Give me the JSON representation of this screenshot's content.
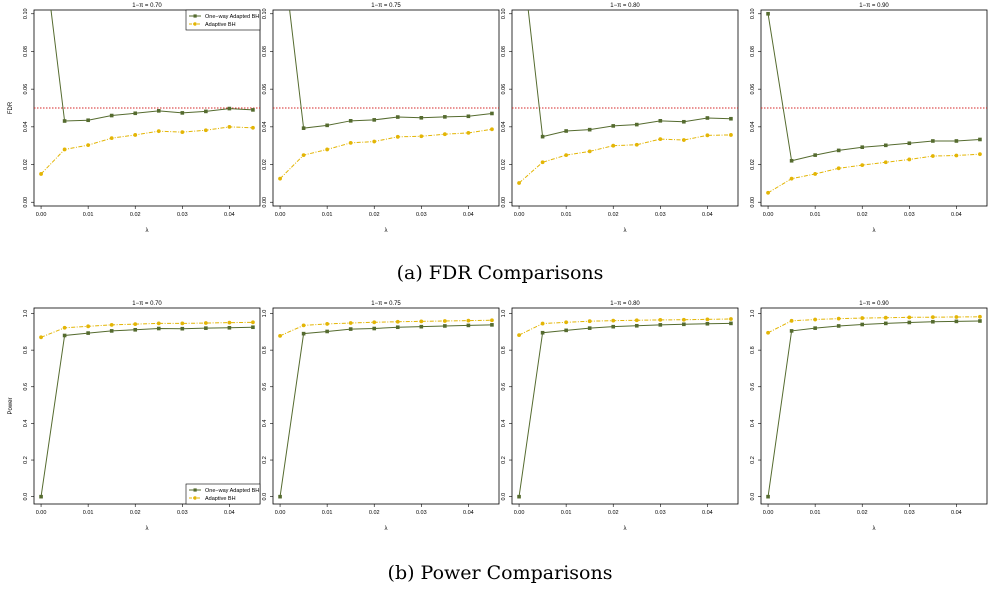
{
  "captions": {
    "row_a": "(a) FDR Comparisons",
    "row_b": "(b) Power Comparisons"
  },
  "colors": {
    "one_way": "#556b2f",
    "adaptive": "#e3b505",
    "reference_line": "#d62728"
  },
  "chart_data": [
    {
      "type": "line",
      "title": "1−π = 0.70",
      "xlabel": "λ",
      "ylabel": "FDR",
      "xlim": [
        -0.0015,
        0.0465
      ],
      "ylim": [
        -0.002,
        0.102
      ],
      "xticks": [
        0.0,
        0.01,
        0.02,
        0.03,
        0.04
      ],
      "xticklabels": [
        "0.00",
        "0.01",
        "0.02",
        "0.03",
        "0.04"
      ],
      "yticks": [
        0.0,
        0.02,
        0.04,
        0.06,
        0.08,
        0.1
      ],
      "yticklabels": [
        "0.00",
        "0.02",
        "0.04",
        "0.06",
        "0.08",
        "0.10"
      ],
      "hline": 0.05,
      "legend": "top-right",
      "x": [
        0.0,
        0.005,
        0.01,
        0.015,
        0.02,
        0.025,
        0.03,
        0.035,
        0.04,
        0.045
      ],
      "series": [
        {
          "name": "One−way Adapted BH",
          "marker": "square",
          "values": [
            0.145,
            0.0431,
            0.0435,
            0.046,
            0.0472,
            0.0485,
            0.0474,
            0.0482,
            0.0497,
            0.049
          ]
        },
        {
          "name": "Adaptive BH",
          "marker": "circle",
          "values": [
            0.015,
            0.028,
            0.0303,
            0.034,
            0.0357,
            0.0377,
            0.0372,
            0.0382,
            0.04,
            0.0395
          ]
        }
      ]
    },
    {
      "type": "line",
      "title": "1−π = 0.75",
      "xlabel": "λ",
      "ylabel": "",
      "xlim": [
        -0.0015,
        0.0465
      ],
      "ylim": [
        -0.002,
        0.102
      ],
      "xticks": [
        0.0,
        0.01,
        0.02,
        0.03,
        0.04
      ],
      "xticklabels": [
        "0.00",
        "0.01",
        "0.02",
        "0.03",
        "0.04"
      ],
      "yticks": [
        0.0,
        0.02,
        0.04,
        0.06,
        0.08,
        0.1
      ],
      "yticklabels": [
        "0.00",
        "0.02",
        "0.04",
        "0.06",
        "0.08",
        "0.10"
      ],
      "hline": 0.05,
      "legend": "none",
      "x": [
        0.0,
        0.005,
        0.01,
        0.015,
        0.02,
        0.025,
        0.03,
        0.035,
        0.04,
        0.045
      ],
      "series": [
        {
          "name": "",
          "marker": "square",
          "values": [
            0.145,
            0.0393,
            0.0408,
            0.0432,
            0.0437,
            0.0452,
            0.0448,
            0.0453,
            0.0456,
            0.0471
          ]
        },
        {
          "name": "",
          "marker": "circle",
          "values": [
            0.0125,
            0.025,
            0.028,
            0.0315,
            0.0322,
            0.0347,
            0.035,
            0.0361,
            0.0368,
            0.0387
          ]
        }
      ]
    },
    {
      "type": "line",
      "title": "1−π = 0.80",
      "xlabel": "λ",
      "ylabel": "",
      "xlim": [
        -0.0015,
        0.0465
      ],
      "ylim": [
        -0.002,
        0.102
      ],
      "xticks": [
        0.0,
        0.01,
        0.02,
        0.03,
        0.04
      ],
      "xticklabels": [
        "0.00",
        "0.01",
        "0.02",
        "0.03",
        "0.04"
      ],
      "yticks": [
        0.0,
        0.02,
        0.04,
        0.06,
        0.08,
        0.1
      ],
      "yticklabels": [
        "0.00",
        "0.02",
        "0.04",
        "0.06",
        "0.08",
        "0.10"
      ],
      "hline": 0.05,
      "legend": "none",
      "x": [
        0.0,
        0.005,
        0.01,
        0.015,
        0.02,
        0.025,
        0.03,
        0.035,
        0.04,
        0.045
      ],
      "series": [
        {
          "name": "",
          "marker": "square",
          "values": [
            0.145,
            0.0348,
            0.0378,
            0.0385,
            0.0405,
            0.0412,
            0.0432,
            0.0427,
            0.0447,
            0.0443
          ]
        },
        {
          "name": "",
          "marker": "circle",
          "values": [
            0.0102,
            0.0212,
            0.025,
            0.027,
            0.03,
            0.0305,
            0.0335,
            0.033,
            0.0355,
            0.0357
          ]
        }
      ]
    },
    {
      "type": "line",
      "title": "1−π = 0.90",
      "xlabel": "λ",
      "ylabel": "",
      "xlim": [
        -0.0015,
        0.0465
      ],
      "ylim": [
        -0.002,
        0.102
      ],
      "xticks": [
        0.0,
        0.01,
        0.02,
        0.03,
        0.04
      ],
      "xticklabels": [
        "0.00",
        "0.01",
        "0.02",
        "0.03",
        "0.04"
      ],
      "yticks": [
        0.0,
        0.02,
        0.04,
        0.06,
        0.08,
        0.1
      ],
      "yticklabels": [
        "0.00",
        "0.02",
        "0.04",
        "0.06",
        "0.08",
        "0.10"
      ],
      "hline": 0.05,
      "legend": "none",
      "x": [
        0.0,
        0.005,
        0.01,
        0.015,
        0.02,
        0.025,
        0.03,
        0.035,
        0.04,
        0.045
      ],
      "series": [
        {
          "name": "",
          "marker": "square",
          "values": [
            0.1,
            0.022,
            0.025,
            0.0275,
            0.0292,
            0.0302,
            0.0313,
            0.0325,
            0.0325,
            0.0333
          ]
        },
        {
          "name": "",
          "marker": "circle",
          "values": [
            0.005,
            0.0125,
            0.015,
            0.018,
            0.0197,
            0.0212,
            0.0227,
            0.0245,
            0.0248,
            0.0255
          ]
        }
      ]
    },
    {
      "type": "line",
      "title": "1−π = 0.70",
      "xlabel": "λ",
      "ylabel": "Power",
      "xlim": [
        -0.0015,
        0.0465
      ],
      "ylim": [
        -0.04,
        1.03
      ],
      "xticks": [
        0.0,
        0.01,
        0.02,
        0.03,
        0.04
      ],
      "xticklabels": [
        "0.00",
        "0.01",
        "0.02",
        "0.03",
        "0.04"
      ],
      "yticks": [
        0.0,
        0.2,
        0.4,
        0.6,
        0.8,
        1.0
      ],
      "yticklabels": [
        "0.0",
        "0.2",
        "0.4",
        "0.6",
        "0.8",
        "1.0"
      ],
      "legend": "bottom-right",
      "x": [
        0.0,
        0.005,
        0.01,
        0.015,
        0.02,
        0.025,
        0.03,
        0.035,
        0.04,
        0.045
      ],
      "series": [
        {
          "name": "One−way Adapted BH",
          "marker": "square",
          "values": [
            0.0,
            0.88,
            0.893,
            0.905,
            0.911,
            0.918,
            0.917,
            0.92,
            0.922,
            0.925
          ]
        },
        {
          "name": "Adaptive BH",
          "marker": "circle",
          "values": [
            0.87,
            0.922,
            0.93,
            0.938,
            0.942,
            0.946,
            0.946,
            0.948,
            0.95,
            0.952
          ]
        }
      ]
    },
    {
      "type": "line",
      "title": "1−π = 0.75",
      "xlabel": "λ",
      "ylabel": "",
      "xlim": [
        -0.0015,
        0.0465
      ],
      "ylim": [
        -0.04,
        1.03
      ],
      "xticks": [
        0.0,
        0.01,
        0.02,
        0.03,
        0.04
      ],
      "xticklabels": [
        "0.00",
        "0.01",
        "0.02",
        "0.03",
        "0.04"
      ],
      "yticks": [
        0.0,
        0.2,
        0.4,
        0.6,
        0.8,
        1.0
      ],
      "yticklabels": [
        "0.0",
        "0.2",
        "0.4",
        "0.6",
        "0.8",
        "1.0"
      ],
      "legend": "none",
      "x": [
        0.0,
        0.005,
        0.01,
        0.015,
        0.02,
        0.025,
        0.03,
        0.035,
        0.04,
        0.045
      ],
      "series": [
        {
          "name": "",
          "marker": "square",
          "values": [
            0.0,
            0.89,
            0.902,
            0.915,
            0.918,
            0.925,
            0.928,
            0.932,
            0.935,
            0.938
          ]
        },
        {
          "name": "",
          "marker": "circle",
          "values": [
            0.878,
            0.935,
            0.943,
            0.948,
            0.952,
            0.955,
            0.957,
            0.959,
            0.961,
            0.963
          ]
        }
      ]
    },
    {
      "type": "line",
      "title": "1−π = 0.80",
      "xlabel": "λ",
      "ylabel": "",
      "xlim": [
        -0.0015,
        0.0465
      ],
      "ylim": [
        -0.04,
        1.03
      ],
      "xticks": [
        0.0,
        0.01,
        0.02,
        0.03,
        0.04
      ],
      "xticklabels": [
        "0.00",
        "0.01",
        "0.02",
        "0.03",
        "0.04"
      ],
      "yticks": [
        0.0,
        0.2,
        0.4,
        0.6,
        0.8,
        1.0
      ],
      "yticklabels": [
        "0.0",
        "0.2",
        "0.4",
        "0.6",
        "0.8",
        "1.0"
      ],
      "legend": "none",
      "x": [
        0.0,
        0.005,
        0.01,
        0.015,
        0.02,
        0.025,
        0.03,
        0.035,
        0.04,
        0.045
      ],
      "series": [
        {
          "name": "",
          "marker": "square",
          "values": [
            0.0,
            0.895,
            0.908,
            0.92,
            0.928,
            0.933,
            0.938,
            0.941,
            0.944,
            0.946
          ]
        },
        {
          "name": "",
          "marker": "circle",
          "values": [
            0.882,
            0.945,
            0.952,
            0.958,
            0.961,
            0.963,
            0.965,
            0.966,
            0.968,
            0.97
          ]
        }
      ]
    },
    {
      "type": "line",
      "title": "1−π = 0.90",
      "xlabel": "λ",
      "ylabel": "",
      "xlim": [
        -0.0015,
        0.0465
      ],
      "ylim": [
        -0.04,
        1.03
      ],
      "xticks": [
        0.0,
        0.01,
        0.02,
        0.03,
        0.04
      ],
      "xticklabels": [
        "0.00",
        "0.01",
        "0.02",
        "0.03",
        "0.04"
      ],
      "yticks": [
        0.0,
        0.2,
        0.4,
        0.6,
        0.8,
        1.0
      ],
      "yticklabels": [
        "0.0",
        "0.2",
        "0.4",
        "0.6",
        "0.8",
        "1.0"
      ],
      "legend": "none",
      "x": [
        0.0,
        0.005,
        0.01,
        0.015,
        0.02,
        0.025,
        0.03,
        0.035,
        0.04,
        0.045
      ],
      "series": [
        {
          "name": "",
          "marker": "square",
          "values": [
            0.0,
            0.905,
            0.92,
            0.932,
            0.94,
            0.946,
            0.951,
            0.955,
            0.957,
            0.959
          ]
        },
        {
          "name": "",
          "marker": "circle",
          "values": [
            0.895,
            0.96,
            0.967,
            0.972,
            0.975,
            0.977,
            0.979,
            0.98,
            0.981,
            0.982
          ]
        }
      ]
    }
  ]
}
